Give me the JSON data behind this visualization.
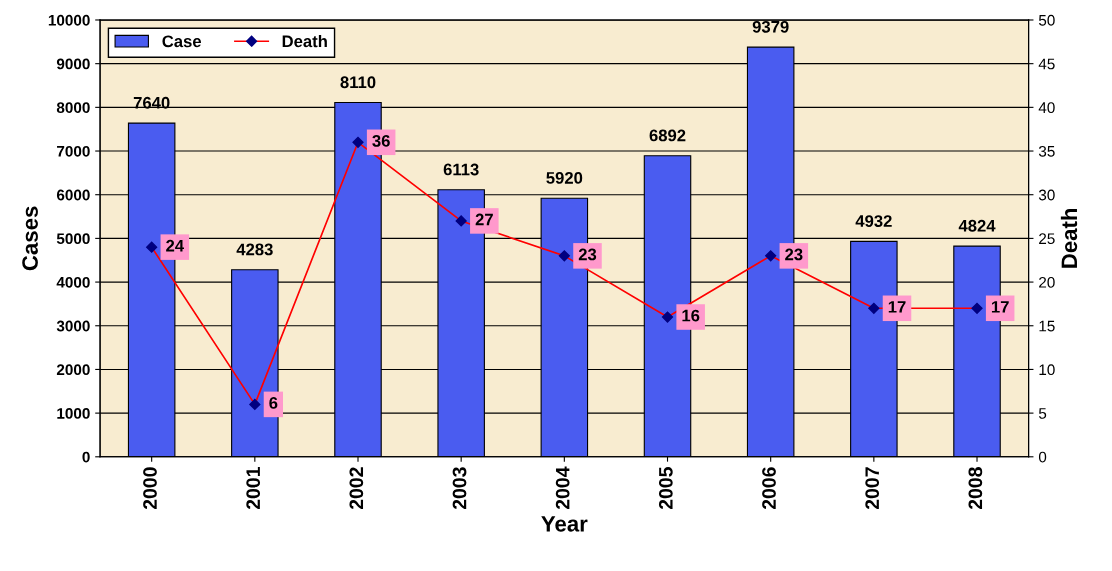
{
  "chart_data": {
    "type": "bar",
    "xlabel": "Year",
    "ylabel": "Cases",
    "y2label": "Death",
    "categories": [
      "2000",
      "2001",
      "2002",
      "2003",
      "2004",
      "2005",
      "2006",
      "2007",
      "2008"
    ],
    "series": [
      {
        "name": "Case",
        "color": "#4a5cf0",
        "values": [
          7640,
          4283,
          8110,
          6113,
          5920,
          6892,
          9379,
          4932,
          4824
        ]
      },
      {
        "name": "Death",
        "type": "line",
        "axis": "y2",
        "color": "#ff0000",
        "values": [
          24,
          6,
          36,
          27,
          23,
          16,
          23,
          17,
          17
        ]
      }
    ],
    "ylim": [
      0,
      10000
    ],
    "yticks": [
      0,
      1000,
      2000,
      3000,
      4000,
      5000,
      6000,
      7000,
      8000,
      9000,
      10000
    ],
    "y2lim": [
      0,
      50
    ],
    "y2ticks": [
      0,
      5,
      10,
      15,
      20,
      25,
      30,
      35,
      40,
      45,
      50
    ],
    "grid": "y",
    "legend": "top left",
    "marker": "diamond",
    "line_style": "solid",
    "data_labels": true
  }
}
